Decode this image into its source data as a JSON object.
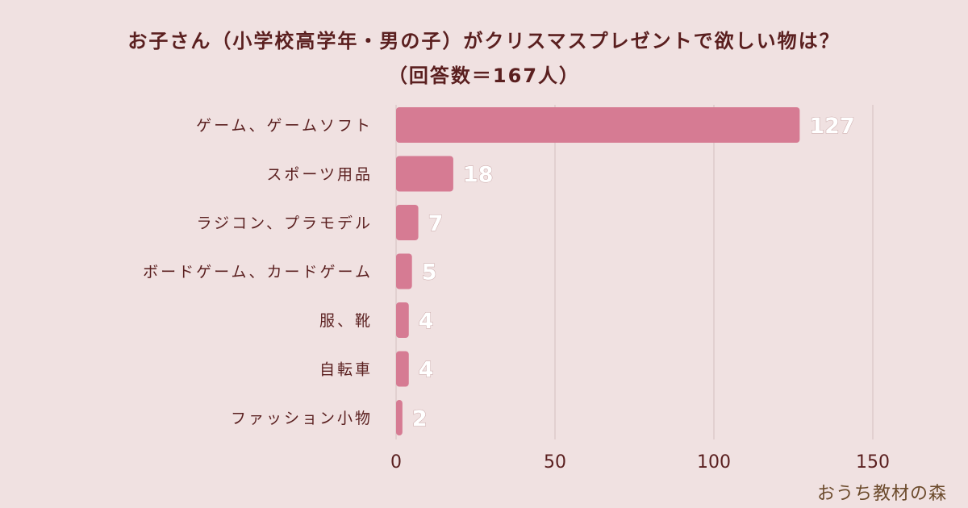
{
  "header": {
    "title_line1": "お子さん（小学校高学年・男の子）がクリスマスプレゼントで欲しい物は？",
    "title_line2": "（回答数＝167人）"
  },
  "logo": {
    "text": "おうち教材の森"
  },
  "chart_data": {
    "type": "bar",
    "orientation": "horizontal",
    "categories": [
      "ゲーム、ゲームソフト",
      "スポーツ用品",
      "ラジコン、プラモデル",
      "ボードゲーム、カードゲーム",
      "服、靴",
      "自転車",
      "ファッション小物"
    ],
    "values": [
      127,
      18,
      7,
      5,
      4,
      4,
      2
    ],
    "data_labels": [
      "127",
      "18",
      "7",
      "5",
      "4",
      "4",
      "2"
    ],
    "x_ticks": [
      "0",
      "50",
      "100",
      "150"
    ],
    "xlim": [
      0,
      150
    ],
    "grid": true,
    "bar_color": "#d67b93",
    "background_color": "#f0e1e1",
    "text_color": "#5a1f1f"
  }
}
